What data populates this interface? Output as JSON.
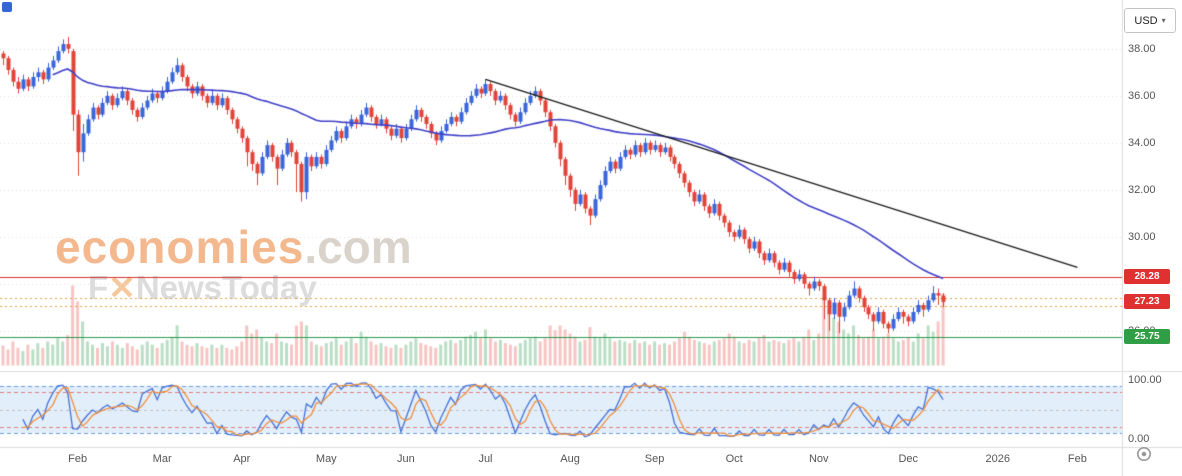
{
  "toolbar": {
    "currency": "USD"
  },
  "watermark": {
    "brand": "economies",
    "suffix": ".com",
    "tagline_f": "F",
    "tagline_x": "✕",
    "tagline_rest": "NewsToday"
  },
  "axis": {
    "price_labels": [
      {
        "text": "38.00",
        "value": 38.0
      },
      {
        "text": "36.00",
        "value": 36.0
      },
      {
        "text": "34.00",
        "value": 34.0
      },
      {
        "text": "32.00",
        "value": 32.0
      },
      {
        "text": "30.00",
        "value": 30.0
      },
      {
        "text": "26.00",
        "value": 26.0
      }
    ],
    "stoch_labels": [
      {
        "text": "100.00",
        "value": 100
      },
      {
        "text": "0.00",
        "value": 0
      }
    ],
    "months": [
      {
        "label": "Feb",
        "i": 15
      },
      {
        "label": "Mar",
        "i": 32
      },
      {
        "label": "Apr",
        "i": 48
      },
      {
        "label": "May",
        "i": 65
      },
      {
        "label": "Jun",
        "i": 81
      },
      {
        "label": "Jul",
        "i": 97
      },
      {
        "label": "Aug",
        "i": 114
      },
      {
        "label": "Sep",
        "i": 131
      },
      {
        "label": "Oct",
        "i": 147
      },
      {
        "label": "Nov",
        "i": 164
      },
      {
        "label": "Dec",
        "i": 182
      },
      {
        "label": "2026",
        "i": 200
      },
      {
        "label": "Feb",
        "i": 216
      }
    ]
  },
  "levels": [
    {
      "text": "28.28",
      "value": 28.28,
      "color": "#e03131"
    },
    {
      "text": "27.23",
      "value": 27.23,
      "color": "#e03131"
    },
    {
      "text": "25.75",
      "value": 25.75,
      "color": "#2f9e44"
    }
  ],
  "chart_data": {
    "type": "candlestick",
    "currency": "USD",
    "y_axis": {
      "min": 25.5,
      "max": 38.8
    },
    "stoch_axis": {
      "min": 0,
      "max": 100
    },
    "colors": {
      "up": "#3b66d9",
      "down": "#e0443a",
      "ma": "#4040c8",
      "trendline": "#1a1a1a",
      "stoch_k": "#4472d8",
      "stoch_d": "#ef8f3f",
      "volume_up": "rgba(130,195,150,0.55)",
      "volume_down": "rgba(238,150,145,0.55)",
      "grid": "#e3e3e3",
      "band_fill": "rgba(173,205,240,0.35)",
      "band_blue": "#6d9fe0",
      "band_red": "#e08080",
      "band_mid": "#c0c0c0",
      "separator": "#dddddd"
    },
    "candles": [
      [
        37.8,
        37.9,
        37.3,
        37.6
      ],
      [
        37.6,
        37.7,
        36.9,
        37.1
      ],
      [
        37.1,
        37.2,
        36.4,
        36.6
      ],
      [
        36.6,
        36.8,
        36.1,
        36.3
      ],
      [
        36.3,
        36.9,
        36.2,
        36.7
      ],
      [
        36.7,
        36.8,
        36.2,
        36.4
      ],
      [
        36.4,
        37.0,
        36.3,
        36.8
      ],
      [
        36.8,
        37.2,
        36.6,
        37.0
      ],
      [
        37.0,
        37.1,
        36.5,
        36.7
      ],
      [
        36.7,
        37.4,
        36.6,
        37.2
      ],
      [
        37.2,
        37.7,
        37.1,
        37.5
      ],
      [
        37.5,
        38.1,
        37.4,
        37.9
      ],
      [
        37.9,
        38.4,
        37.8,
        38.2
      ],
      [
        38.2,
        38.5,
        37.8,
        38.0
      ],
      [
        37.9,
        38.0,
        34.5,
        35.2
      ],
      [
        35.2,
        35.4,
        32.6,
        33.6
      ],
      [
        33.6,
        34.8,
        33.2,
        34.4
      ],
      [
        34.4,
        35.2,
        34.3,
        35.0
      ],
      [
        35.0,
        35.7,
        34.9,
        35.5
      ],
      [
        35.5,
        35.6,
        35.0,
        35.2
      ],
      [
        35.2,
        35.9,
        35.1,
        35.7
      ],
      [
        35.7,
        36.2,
        35.6,
        36.0
      ],
      [
        36.0,
        36.1,
        35.4,
        35.6
      ],
      [
        35.6,
        36.1,
        35.5,
        35.9
      ],
      [
        35.9,
        36.4,
        35.8,
        36.2
      ],
      [
        36.2,
        36.3,
        35.6,
        35.8
      ],
      [
        35.8,
        35.9,
        35.2,
        35.4
      ],
      [
        35.4,
        35.5,
        34.9,
        35.1
      ],
      [
        35.1,
        35.7,
        35.0,
        35.5
      ],
      [
        35.5,
        36.0,
        35.4,
        35.8
      ],
      [
        35.8,
        36.3,
        35.7,
        36.1
      ],
      [
        36.1,
        36.2,
        35.7,
        35.9
      ],
      [
        35.9,
        36.4,
        35.8,
        36.2
      ],
      [
        36.2,
        36.8,
        36.1,
        36.6
      ],
      [
        36.6,
        37.2,
        36.5,
        37.0
      ],
      [
        37.0,
        37.6,
        36.9,
        37.3
      ],
      [
        37.3,
        37.4,
        36.6,
        36.8
      ],
      [
        36.8,
        36.9,
        36.2,
        36.4
      ],
      [
        36.4,
        36.5,
        35.9,
        36.1
      ],
      [
        36.1,
        36.6,
        36.0,
        36.4
      ],
      [
        36.4,
        36.5,
        35.8,
        36.0
      ],
      [
        36.0,
        36.1,
        35.5,
        35.7
      ],
      [
        35.7,
        36.2,
        35.6,
        36.0
      ],
      [
        36.0,
        36.1,
        35.4,
        35.6
      ],
      [
        35.6,
        36.1,
        35.5,
        35.9
      ],
      [
        35.9,
        36.0,
        35.2,
        35.4
      ],
      [
        35.4,
        35.5,
        34.8,
        35.0
      ],
      [
        35.0,
        35.1,
        34.4,
        34.6
      ],
      [
        34.6,
        34.7,
        34.0,
        34.2
      ],
      [
        34.2,
        34.3,
        33.0,
        33.6
      ],
      [
        33.6,
        33.7,
        32.8,
        33.1
      ],
      [
        33.1,
        33.2,
        32.2,
        32.7
      ],
      [
        32.7,
        33.6,
        32.6,
        33.4
      ],
      [
        33.4,
        34.1,
        33.3,
        33.9
      ],
      [
        33.9,
        34.0,
        33.2,
        33.4
      ],
      [
        33.4,
        33.5,
        32.2,
        32.9
      ],
      [
        32.9,
        33.7,
        32.8,
        33.5
      ],
      [
        33.5,
        34.2,
        33.4,
        34.0
      ],
      [
        34.0,
        34.1,
        33.4,
        33.6
      ],
      [
        33.6,
        33.7,
        31.9,
        33.1
      ],
      [
        33.1,
        33.2,
        31.5,
        31.9
      ],
      [
        31.9,
        33.6,
        31.6,
        33.4
      ],
      [
        33.4,
        33.5,
        32.8,
        33.0
      ],
      [
        33.0,
        33.6,
        32.9,
        33.4
      ],
      [
        33.4,
        33.5,
        32.9,
        33.1
      ],
      [
        33.1,
        33.9,
        33.0,
        33.7
      ],
      [
        33.7,
        34.3,
        33.6,
        34.1
      ],
      [
        34.1,
        34.7,
        34.0,
        34.5
      ],
      [
        34.5,
        34.6,
        34.0,
        34.2
      ],
      [
        34.2,
        34.9,
        34.1,
        34.7
      ],
      [
        34.7,
        35.2,
        34.6,
        35.0
      ],
      [
        35.0,
        35.1,
        34.6,
        34.8
      ],
      [
        34.8,
        35.4,
        34.7,
        35.2
      ],
      [
        35.2,
        35.7,
        35.1,
        35.5
      ],
      [
        35.5,
        35.6,
        34.9,
        35.1
      ],
      [
        35.1,
        35.2,
        34.6,
        34.8
      ],
      [
        34.8,
        35.2,
        34.7,
        35.0
      ],
      [
        35.0,
        35.1,
        34.4,
        34.6
      ],
      [
        34.6,
        34.7,
        34.1,
        34.3
      ],
      [
        34.3,
        34.8,
        34.2,
        34.6
      ],
      [
        34.6,
        34.7,
        34.0,
        34.2
      ],
      [
        34.2,
        34.8,
        34.1,
        34.6
      ],
      [
        34.6,
        35.2,
        34.5,
        35.0
      ],
      [
        35.0,
        35.6,
        34.9,
        35.4
      ],
      [
        35.4,
        35.5,
        34.9,
        35.1
      ],
      [
        35.1,
        35.2,
        34.6,
        34.8
      ],
      [
        34.8,
        34.9,
        34.2,
        34.4
      ],
      [
        34.4,
        34.5,
        33.9,
        34.1
      ],
      [
        34.1,
        34.7,
        34.0,
        34.5
      ],
      [
        34.5,
        35.0,
        34.4,
        34.8
      ],
      [
        34.8,
        35.3,
        34.7,
        35.1
      ],
      [
        35.1,
        35.2,
        34.7,
        34.9
      ],
      [
        34.9,
        35.5,
        34.8,
        35.3
      ],
      [
        35.3,
        35.9,
        35.2,
        35.7
      ],
      [
        35.7,
        36.2,
        35.6,
        36.0
      ],
      [
        36.0,
        36.5,
        35.9,
        36.3
      ],
      [
        36.3,
        36.4,
        35.9,
        36.1
      ],
      [
        36.1,
        36.7,
        36.0,
        36.5
      ],
      [
        36.5,
        36.6,
        36.0,
        36.2
      ],
      [
        36.2,
        36.3,
        35.6,
        35.8
      ],
      [
        35.8,
        36.2,
        35.7,
        36.0
      ],
      [
        36.0,
        36.1,
        35.4,
        35.6
      ],
      [
        35.6,
        35.7,
        35.0,
        35.2
      ],
      [
        35.2,
        35.3,
        34.7,
        34.9
      ],
      [
        34.9,
        35.5,
        34.8,
        35.3
      ],
      [
        35.3,
        35.9,
        35.2,
        35.7
      ],
      [
        35.7,
        36.2,
        35.6,
        36.0
      ],
      [
        36.0,
        36.4,
        35.9,
        36.2
      ],
      [
        36.2,
        36.3,
        35.6,
        35.8
      ],
      [
        35.8,
        35.9,
        35.1,
        35.3
      ],
      [
        35.3,
        35.4,
        34.5,
        34.7
      ],
      [
        34.7,
        34.8,
        33.8,
        34.0
      ],
      [
        34.0,
        34.1,
        33.0,
        33.3
      ],
      [
        33.3,
        33.4,
        32.2,
        32.6
      ],
      [
        32.6,
        32.7,
        31.7,
        32.0
      ],
      [
        32.0,
        32.1,
        31.1,
        31.4
      ],
      [
        31.4,
        32.0,
        31.3,
        31.8
      ],
      [
        31.8,
        31.9,
        31.0,
        31.2
      ],
      [
        31.2,
        31.3,
        30.5,
        30.9
      ],
      [
        30.9,
        31.8,
        30.8,
        31.6
      ],
      [
        31.6,
        32.4,
        31.5,
        32.2
      ],
      [
        32.2,
        33.0,
        32.1,
        32.8
      ],
      [
        32.8,
        33.4,
        32.7,
        33.2
      ],
      [
        33.2,
        33.3,
        32.7,
        32.9
      ],
      [
        32.9,
        33.6,
        32.8,
        33.4
      ],
      [
        33.4,
        33.9,
        33.3,
        33.7
      ],
      [
        33.7,
        33.8,
        33.3,
        33.5
      ],
      [
        33.5,
        34.1,
        33.4,
        33.9
      ],
      [
        33.9,
        34.0,
        33.4,
        33.6
      ],
      [
        33.6,
        34.2,
        33.5,
        34.0
      ],
      [
        34.0,
        34.1,
        33.5,
        33.7
      ],
      [
        33.7,
        34.1,
        33.6,
        33.9
      ],
      [
        33.9,
        34.0,
        33.4,
        33.6
      ],
      [
        33.6,
        34.0,
        33.5,
        33.8
      ],
      [
        33.8,
        33.9,
        33.2,
        33.4
      ],
      [
        33.4,
        33.5,
        32.9,
        33.1
      ],
      [
        33.1,
        33.2,
        32.5,
        32.7
      ],
      [
        32.7,
        32.8,
        32.1,
        32.3
      ],
      [
        32.3,
        32.4,
        31.7,
        31.9
      ],
      [
        31.9,
        32.0,
        31.3,
        31.5
      ],
      [
        31.5,
        32.0,
        31.4,
        31.8
      ],
      [
        31.8,
        31.9,
        31.1,
        31.3
      ],
      [
        31.3,
        31.4,
        30.8,
        31.0
      ],
      [
        31.0,
        31.6,
        30.9,
        31.4
      ],
      [
        31.4,
        31.5,
        30.7,
        30.9
      ],
      [
        30.9,
        31.0,
        30.4,
        30.6
      ],
      [
        30.6,
        30.7,
        30.0,
        30.2
      ],
      [
        30.2,
        30.3,
        29.8,
        30.0
      ],
      [
        30.0,
        30.5,
        29.9,
        30.3
      ],
      [
        30.3,
        30.4,
        29.7,
        29.9
      ],
      [
        29.9,
        30.0,
        29.3,
        29.5
      ],
      [
        29.5,
        30.0,
        29.4,
        29.8
      ],
      [
        29.8,
        29.9,
        29.1,
        29.3
      ],
      [
        29.3,
        29.4,
        28.8,
        29.0
      ],
      [
        29.0,
        29.5,
        28.9,
        29.3
      ],
      [
        29.3,
        29.4,
        28.7,
        28.9
      ],
      [
        28.9,
        29.0,
        28.4,
        28.6
      ],
      [
        28.6,
        29.1,
        28.5,
        28.9
      ],
      [
        28.9,
        29.0,
        28.3,
        28.5
      ],
      [
        28.5,
        28.6,
        28.0,
        28.2
      ],
      [
        28.2,
        28.6,
        28.1,
        28.4
      ],
      [
        28.4,
        28.5,
        27.8,
        28.0
      ],
      [
        28.0,
        28.1,
        27.5,
        27.8
      ],
      [
        27.8,
        28.3,
        27.7,
        28.1
      ],
      [
        28.1,
        28.2,
        27.7,
        27.9
      ],
      [
        27.9,
        28.0,
        26.5,
        27.3
      ],
      [
        27.3,
        27.4,
        26.0,
        26.7
      ],
      [
        26.7,
        27.4,
        26.5,
        27.2
      ],
      [
        27.2,
        27.3,
        25.9,
        26.6
      ],
      [
        26.6,
        27.2,
        26.4,
        27.0
      ],
      [
        27.0,
        27.7,
        26.9,
        27.5
      ],
      [
        27.5,
        28.1,
        27.4,
        27.8
      ],
      [
        27.8,
        27.9,
        27.2,
        27.4
      ],
      [
        27.4,
        27.5,
        26.8,
        27.0
      ],
      [
        27.0,
        27.1,
        26.5,
        26.7
      ],
      [
        26.7,
        26.8,
        26.0,
        26.4
      ],
      [
        26.4,
        27.0,
        26.3,
        26.8
      ],
      [
        26.8,
        26.9,
        26.1,
        26.3
      ],
      [
        26.3,
        26.4,
        25.9,
        26.1
      ],
      [
        26.1,
        26.7,
        26.0,
        26.5
      ],
      [
        26.5,
        27.0,
        26.4,
        26.8
      ],
      [
        26.8,
        26.9,
        26.3,
        26.6
      ],
      [
        26.6,
        26.7,
        26.2,
        26.4
      ],
      [
        26.4,
        27.0,
        26.3,
        26.8
      ],
      [
        26.8,
        27.3,
        26.7,
        27.1
      ],
      [
        27.1,
        27.2,
        26.6,
        26.9
      ],
      [
        26.9,
        27.5,
        26.8,
        27.3
      ],
      [
        27.3,
        27.9,
        27.2,
        27.6
      ],
      [
        27.6,
        27.8,
        27.1,
        27.5
      ],
      [
        27.5,
        27.6,
        27.0,
        27.23
      ]
    ],
    "volume": [
      0.25,
      0.2,
      0.3,
      0.22,
      0.18,
      0.26,
      0.2,
      0.28,
      0.22,
      0.3,
      0.26,
      0.34,
      0.3,
      0.38,
      1.0,
      0.8,
      0.55,
      0.3,
      0.26,
      0.22,
      0.28,
      0.24,
      0.3,
      0.26,
      0.22,
      0.28,
      0.24,
      0.2,
      0.26,
      0.3,
      0.26,
      0.22,
      0.28,
      0.32,
      0.36,
      0.5,
      0.3,
      0.26,
      0.24,
      0.28,
      0.24,
      0.22,
      0.26,
      0.22,
      0.26,
      0.22,
      0.2,
      0.24,
      0.3,
      0.5,
      0.4,
      0.45,
      0.35,
      0.3,
      0.28,
      0.4,
      0.3,
      0.28,
      0.26,
      0.5,
      0.55,
      0.5,
      0.3,
      0.26,
      0.24,
      0.28,
      0.3,
      0.34,
      0.26,
      0.3,
      0.34,
      0.28,
      0.42,
      0.36,
      0.3,
      0.26,
      0.28,
      0.24,
      0.22,
      0.26,
      0.22,
      0.26,
      0.3,
      0.34,
      0.28,
      0.26,
      0.24,
      0.22,
      0.26,
      0.3,
      0.32,
      0.28,
      0.32,
      0.36,
      0.38,
      0.42,
      0.34,
      0.45,
      0.34,
      0.3,
      0.32,
      0.28,
      0.26,
      0.24,
      0.28,
      0.32,
      0.34,
      0.36,
      0.3,
      0.34,
      0.5,
      0.44,
      0.5,
      0.45,
      0.4,
      0.36,
      0.3,
      0.32,
      0.48,
      0.36,
      0.34,
      0.4,
      0.34,
      0.3,
      0.32,
      0.3,
      0.28,
      0.32,
      0.28,
      0.3,
      0.26,
      0.3,
      0.26,
      0.28,
      0.26,
      0.3,
      0.34,
      0.42,
      0.36,
      0.32,
      0.3,
      0.28,
      0.26,
      0.3,
      0.32,
      0.34,
      0.4,
      0.36,
      0.3,
      0.28,
      0.32,
      0.3,
      0.34,
      0.38,
      0.3,
      0.32,
      0.3,
      0.28,
      0.32,
      0.34,
      0.3,
      0.36,
      0.45,
      0.32,
      0.4,
      0.85,
      0.7,
      0.6,
      0.55,
      0.45,
      0.4,
      0.5,
      0.38,
      0.34,
      0.36,
      0.45,
      0.34,
      0.36,
      0.4,
      0.34,
      0.3,
      0.32,
      0.35,
      0.3,
      0.4,
      0.34,
      0.5,
      0.42,
      0.55,
      0.9
    ],
    "overlays": {
      "sma_window": 50,
      "trendline": {
        "i1": 97,
        "p1": 36.7,
        "i2": 216,
        "p2": 28.7
      },
      "hlines": [
        {
          "value": 28.28,
          "color": "#d63030",
          "style": "solid"
        },
        {
          "value": 25.75,
          "color": "#2b9a4e",
          "style": "solid"
        },
        {
          "value": 27.4,
          "color": "#e8a33d",
          "style": "dotted"
        },
        {
          "value": 27.07,
          "color": "#e8a33d",
          "style": "dotted"
        }
      ],
      "gridlines": [
        38,
        36,
        34,
        32,
        30,
        28,
        26
      ]
    },
    "stochastic": {
      "k_period": 14,
      "d_period": 3,
      "band_fill_between": [
        10,
        90
      ],
      "blue_dashed": [
        90,
        10
      ],
      "red_dashed": [
        80,
        20
      ],
      "mid_dashed": 50
    }
  }
}
